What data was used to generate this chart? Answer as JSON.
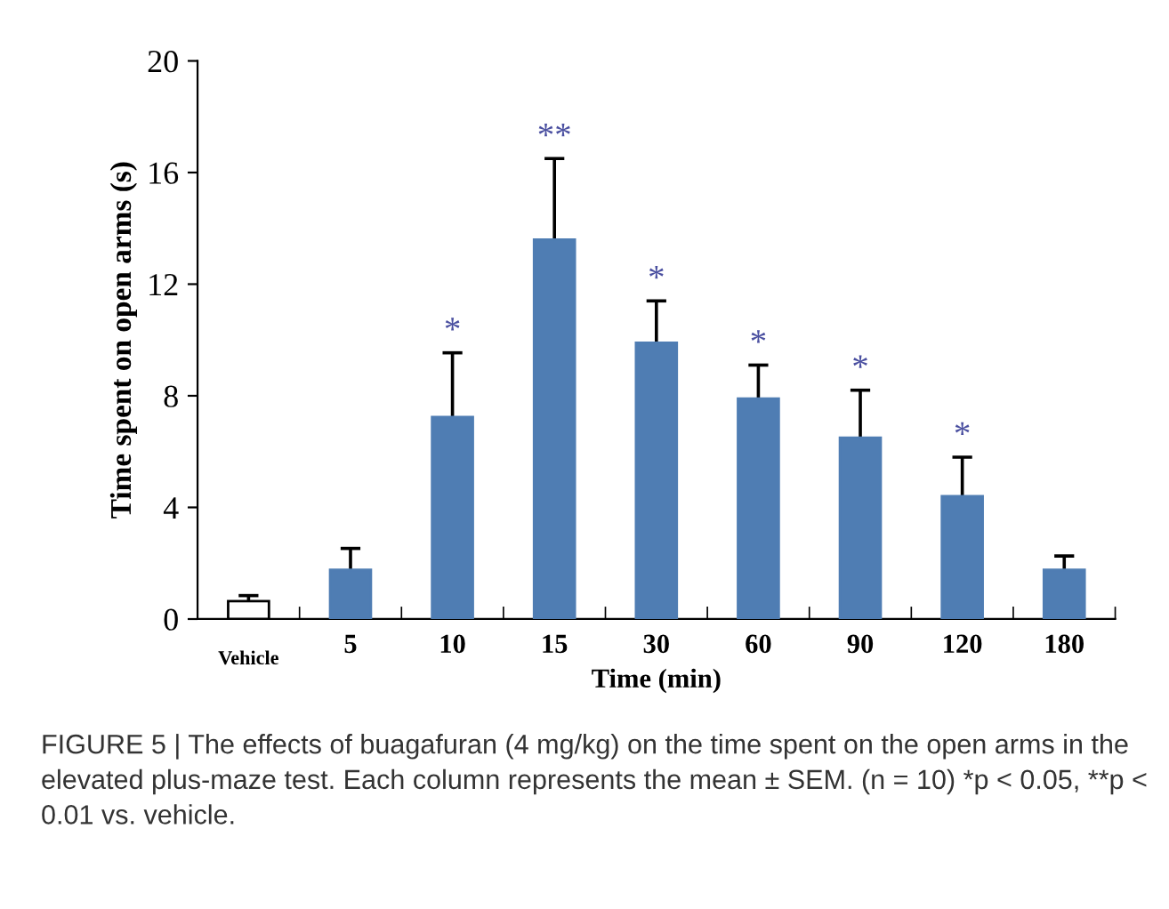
{
  "chart_data": {
    "type": "bar",
    "xlabel": "Time (min)",
    "ylabel": "Time spent on open arms (s)",
    "categories": [
      "Vehicle",
      "5",
      "10",
      "15",
      "30",
      "60",
      "90",
      "120",
      "180"
    ],
    "values": [
      0.64,
      1.76,
      7.24,
      13.6,
      9.9,
      7.9,
      6.5,
      4.4,
      1.76
    ],
    "errors": [
      0.2,
      0.77,
      2.3,
      2.9,
      1.5,
      1.2,
      1.7,
      1.4,
      0.5
    ],
    "value_labels": [
      null,
      null,
      "*",
      "**",
      "*",
      "*",
      "*",
      "*",
      null
    ],
    "colors": [
      "#ffffff",
      "#4f7db3",
      "#4f7db3",
      "#4f7db3",
      "#4f7db3",
      "#4f7db3",
      "#4f7db3",
      "#4f7db3",
      "#4f7db3"
    ],
    "ylim": [
      0,
      20
    ],
    "yticks": [
      0,
      4,
      8,
      12,
      16,
      20
    ],
    "grid": false,
    "legend": false,
    "annotations": [
      "FIGURE 5 | The effects of buagafuran (4 mg/kg) on the time spent on the open arms in the elevated plus-maze test. Each column represents the mean ± SEM. (n = 10) *p < 0.05, **p < 0.01 vs. vehicle."
    ]
  }
}
